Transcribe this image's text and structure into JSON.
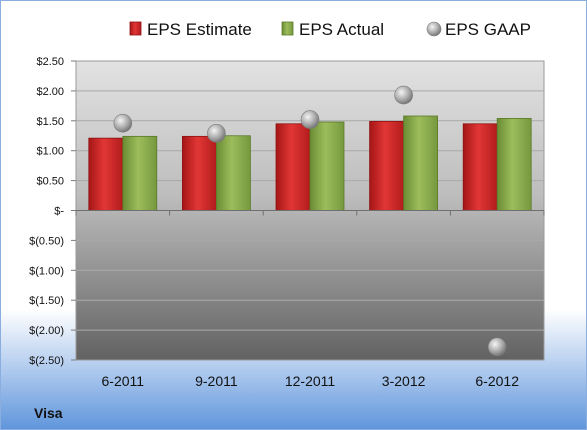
{
  "chart_data": {
    "type": "bar",
    "company": "Visa",
    "categories": [
      "6-2011",
      "9-2011",
      "12-2011",
      "3-2012",
      "6-2012"
    ],
    "series": [
      {
        "name": "EPS Estimate",
        "kind": "bar",
        "color": "#d42a2a",
        "values": [
          1.21,
          1.24,
          1.45,
          1.49,
          1.45
        ]
      },
      {
        "name": "EPS Actual",
        "kind": "bar",
        "color": "#86a94a",
        "values": [
          1.24,
          1.25,
          1.48,
          1.58,
          1.54
        ]
      },
      {
        "name": "EPS GAAP",
        "kind": "scatter",
        "color": "#9a9a9a",
        "values": [
          1.46,
          1.29,
          1.52,
          1.93,
          -2.28
        ]
      }
    ],
    "ylim": [
      -2.5,
      2.5
    ],
    "yticks": [
      2.5,
      2.0,
      1.5,
      1.0,
      0.5,
      0,
      -0.5,
      -1.0,
      -1.5,
      -2.0,
      -2.5
    ],
    "ytick_labels": [
      "$2.50",
      "$2.00",
      "$1.50",
      "$1.00",
      "$0.50",
      "$-",
      "$(0.50)",
      "$(1.00)",
      "$(1.50)",
      "$(2.00)",
      "$(2.50)"
    ],
    "legend_position": "top",
    "grid": true
  }
}
